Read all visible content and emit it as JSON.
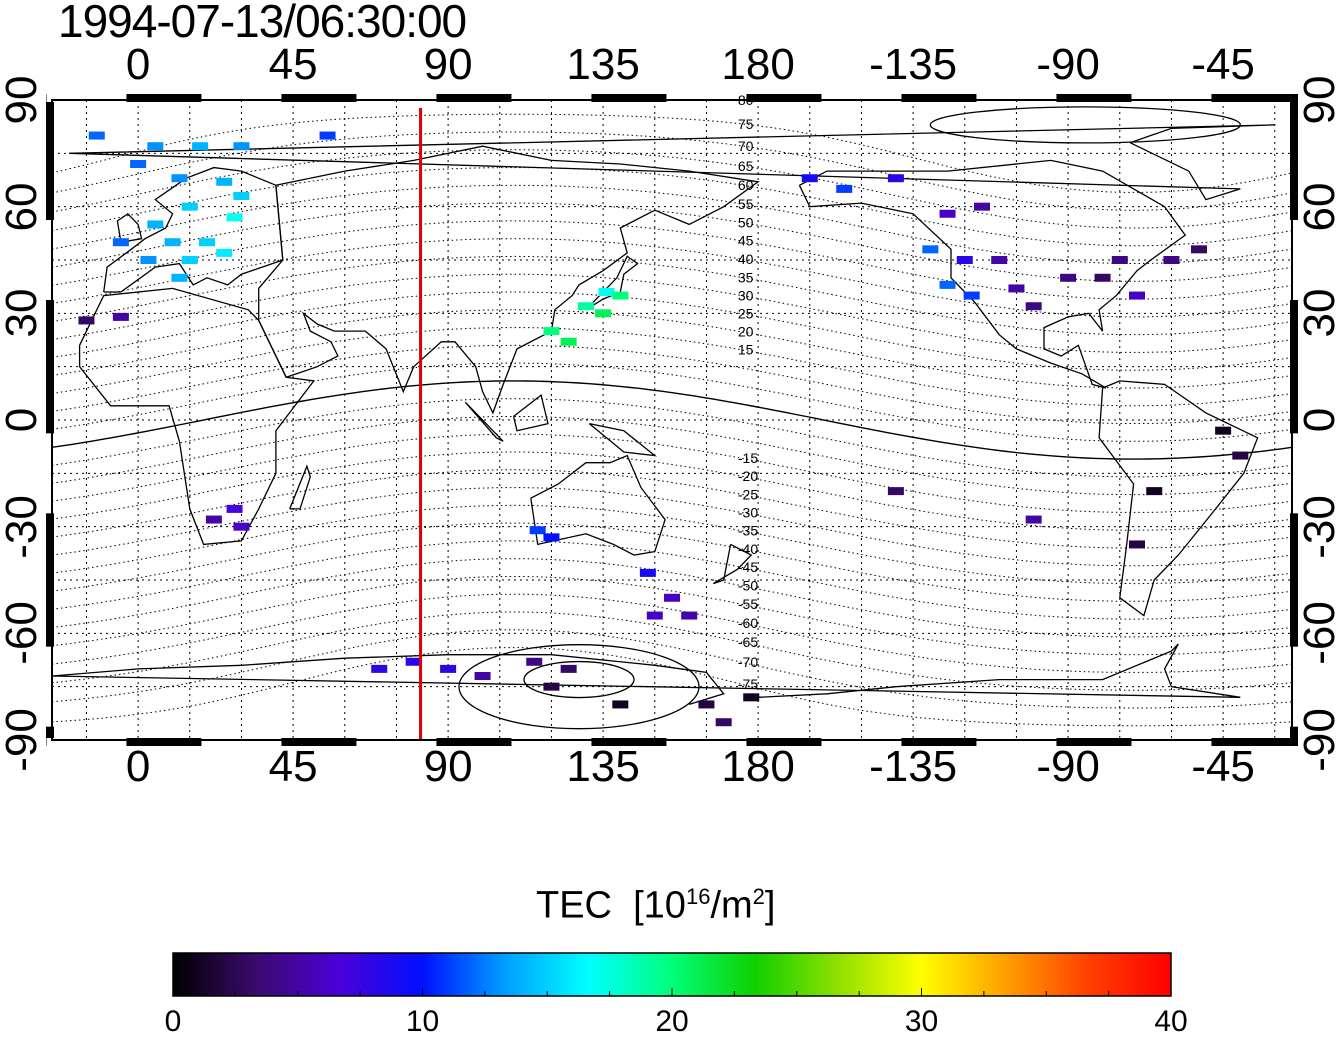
{
  "title": "1994-07-13/06:30:00",
  "chart_data": {
    "type": "map",
    "projection": "equirectangular",
    "lon_range": [
      -25,
      335
    ],
    "lat_range": [
      -90,
      90
    ],
    "lon_ticks": [
      "0",
      "45",
      "90",
      "135",
      "180",
      "-135",
      "-90",
      "-45"
    ],
    "lat_ticks": [
      "90",
      "60",
      "30",
      "0",
      "-30",
      "-60",
      "-90"
    ],
    "grid": "dotted 15 degrees",
    "marker_line_lon": 82,
    "magnetic_latitude_labels": [
      "80",
      "75",
      "70",
      "65",
      "60",
      "55",
      "50",
      "45",
      "40",
      "35",
      "30",
      "25",
      "20",
      "15",
      "-15",
      "-20",
      "-25",
      "-30",
      "-35",
      "-40",
      "-45",
      "-50",
      "-55",
      "-60",
      "-65",
      "-70",
      "-75"
    ],
    "colorbar": {
      "label": "TEC",
      "units": "10^16/m^2",
      "range": [
        0,
        40
      ],
      "tick_labels": [
        "0",
        "10",
        "20",
        "30",
        "40"
      ],
      "colors": [
        "#000000",
        "#3b0a6e",
        "#4b00d8",
        "#0010ff",
        "#00a0ff",
        "#00ffff",
        "#00ff7a",
        "#10d000",
        "#90e000",
        "#ffff00",
        "#ffa000",
        "#ff4000",
        "#ff0000"
      ]
    },
    "tec_points": [
      {
        "lon": -12,
        "lat": 80,
        "tec": 12
      },
      {
        "lon": 5,
        "lat": 77,
        "tec": 13
      },
      {
        "lon": 18,
        "lat": 77,
        "tec": 14
      },
      {
        "lon": 30,
        "lat": 77,
        "tec": 13
      },
      {
        "lon": 55,
        "lat": 80,
        "tec": 11
      },
      {
        "lon": 0,
        "lat": 72,
        "tec": 12
      },
      {
        "lon": 12,
        "lat": 68,
        "tec": 13
      },
      {
        "lon": 25,
        "lat": 67,
        "tec": 14
      },
      {
        "lon": 30,
        "lat": 63,
        "tec": 15
      },
      {
        "lon": 15,
        "lat": 60,
        "tec": 15
      },
      {
        "lon": 28,
        "lat": 57,
        "tec": 17
      },
      {
        "lon": 5,
        "lat": 55,
        "tec": 14
      },
      {
        "lon": -5,
        "lat": 50,
        "tec": 12
      },
      {
        "lon": 10,
        "lat": 50,
        "tec": 14
      },
      {
        "lon": 20,
        "lat": 50,
        "tec": 15
      },
      {
        "lon": 3,
        "lat": 45,
        "tec": 13
      },
      {
        "lon": 15,
        "lat": 45,
        "tec": 15
      },
      {
        "lon": 25,
        "lat": 47,
        "tec": 16
      },
      {
        "lon": 12,
        "lat": 40,
        "tec": 14
      },
      {
        "lon": -15,
        "lat": 28,
        "tec": 3
      },
      {
        "lon": -5,
        "lat": 29,
        "tec": 5
      },
      {
        "lon": 22,
        "lat": -28,
        "tec": 5
      },
      {
        "lon": 28,
        "lat": -25,
        "tec": 7
      },
      {
        "lon": 30,
        "lat": -30,
        "tec": 6
      },
      {
        "lon": 120,
        "lat": 25,
        "tec": 20
      },
      {
        "lon": 125,
        "lat": 22,
        "tec": 21
      },
      {
        "lon": 130,
        "lat": 32,
        "tec": 19
      },
      {
        "lon": 136,
        "lat": 36,
        "tec": 17
      },
      {
        "lon": 140,
        "lat": 35,
        "tec": 20
      },
      {
        "lon": 135,
        "lat": 30,
        "tec": 21
      },
      {
        "lon": 116,
        "lat": -31,
        "tec": 11
      },
      {
        "lon": 120,
        "lat": -33,
        "tec": 10
      },
      {
        "lon": 148,
        "lat": -43,
        "tec": 9
      },
      {
        "lon": 155,
        "lat": -50,
        "tec": 6
      },
      {
        "lon": 160,
        "lat": -55,
        "tec": 5
      },
      {
        "lon": 150,
        "lat": -55,
        "tec": 6
      },
      {
        "lon": 70,
        "lat": -70,
        "tec": 8
      },
      {
        "lon": 80,
        "lat": -68,
        "tec": 8
      },
      {
        "lon": 90,
        "lat": -70,
        "tec": 8
      },
      {
        "lon": 100,
        "lat": -72,
        "tec": 5
      },
      {
        "lon": 115,
        "lat": -68,
        "tec": 4
      },
      {
        "lon": 125,
        "lat": -70,
        "tec": 3
      },
      {
        "lon": 120,
        "lat": -75,
        "tec": 2
      },
      {
        "lon": 140,
        "lat": -80,
        "tec": 1
      },
      {
        "lon": 165,
        "lat": -80,
        "tec": 2
      },
      {
        "lon": 178,
        "lat": -78,
        "tec": 1
      },
      {
        "lon": 170,
        "lat": -85,
        "tec": 3
      },
      {
        "lon": -165,
        "lat": 68,
        "tec": 9
      },
      {
        "lon": -155,
        "lat": 65,
        "tec": 11
      },
      {
        "lon": -140,
        "lat": 68,
        "tec": 8
      },
      {
        "lon": -125,
        "lat": 58,
        "tec": 6
      },
      {
        "lon": -115,
        "lat": 60,
        "tec": 5
      },
      {
        "lon": -130,
        "lat": 48,
        "tec": 12
      },
      {
        "lon": -120,
        "lat": 45,
        "tec": 8
      },
      {
        "lon": -110,
        "lat": 45,
        "tec": 5
      },
      {
        "lon": -125,
        "lat": 38,
        "tec": 12
      },
      {
        "lon": -118,
        "lat": 35,
        "tec": 11
      },
      {
        "lon": -105,
        "lat": 37,
        "tec": 5
      },
      {
        "lon": -100,
        "lat": 32,
        "tec": 4
      },
      {
        "lon": -90,
        "lat": 40,
        "tec": 4
      },
      {
        "lon": -80,
        "lat": 40,
        "tec": 3
      },
      {
        "lon": -75,
        "lat": 45,
        "tec": 4
      },
      {
        "lon": -70,
        "lat": 35,
        "tec": 6
      },
      {
        "lon": -60,
        "lat": 45,
        "tec": 4
      },
      {
        "lon": -52,
        "lat": 48,
        "tec": 3
      },
      {
        "lon": -45,
        "lat": -3,
        "tec": 1
      },
      {
        "lon": -40,
        "lat": -10,
        "tec": 2
      },
      {
        "lon": -65,
        "lat": -20,
        "tec": 1
      },
      {
        "lon": -70,
        "lat": -35,
        "tec": 2
      },
      {
        "lon": -100,
        "lat": -28,
        "tec": 5
      },
      {
        "lon": -140,
        "lat": -20,
        "tec": 3
      }
    ]
  }
}
